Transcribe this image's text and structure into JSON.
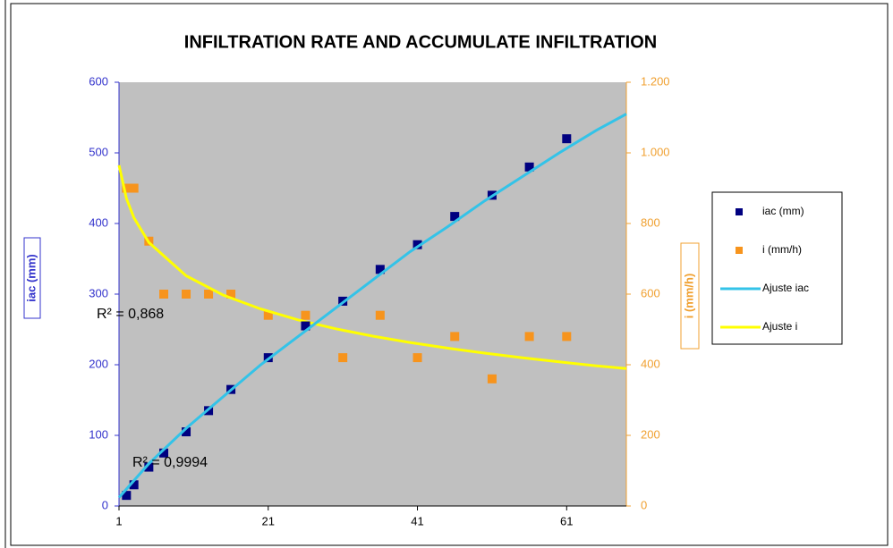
{
  "chart_data": {
    "type": "scatter",
    "title": "INFILTRATION RATE AND ACCUMULATE INFILTRATION",
    "y_label": "iac (mm)",
    "y2_label": "i (mm/h)",
    "annotations": [
      "R² = 0,868",
      "R² = 0,9994"
    ],
    "xlim": [
      1,
      69
    ],
    "xticks": [
      1,
      21,
      41,
      61
    ],
    "ylim": [
      0,
      600
    ],
    "yticks": [
      0,
      100,
      200,
      300,
      400,
      500,
      600
    ],
    "y2lim": [
      0,
      1200
    ],
    "y2ticks": [
      0,
      200,
      400,
      600,
      800,
      {
        "value": 1000,
        "label": "1.000"
      },
      {
        "value": 1200,
        "label": "1.200"
      }
    ],
    "plot_background": "#c0c0c0",
    "series": [
      {
        "name": "iac (mm)",
        "type": "scatter",
        "color": "#000080",
        "axis": "y",
        "x": [
          2,
          3,
          5,
          7,
          10,
          13,
          16,
          21,
          26,
          31,
          36,
          41,
          46,
          51,
          56,
          61
        ],
        "values": [
          15,
          30,
          55,
          75,
          105,
          135,
          165,
          210,
          255,
          290,
          335,
          370,
          410,
          440,
          480,
          520
        ]
      },
      {
        "name": "i (mm/h)",
        "type": "scatter",
        "color": "#f7941d",
        "axis": "y2",
        "x": [
          2,
          3,
          5,
          7,
          10,
          13,
          16,
          21,
          26,
          31,
          36,
          41,
          46,
          51,
          56,
          61
        ],
        "values": [
          900,
          900,
          750,
          600,
          600,
          600,
          600,
          540,
          540,
          420,
          540,
          420,
          480,
          360,
          480,
          480
        ]
      },
      {
        "name": "Ajuste iac",
        "type": "line",
        "color": "#33c3e8",
        "axis": "y",
        "x": [
          1,
          5,
          10,
          15,
          20,
          25,
          30,
          35,
          40,
          45,
          50,
          55,
          60,
          65,
          69
        ],
        "values": [
          12,
          60,
          110,
          155,
          200,
          240,
          280,
          320,
          360,
          395,
          432,
          466,
          500,
          532,
          555
        ]
      },
      {
        "name": "Ajuste i",
        "type": "line",
        "color": "#ffff00",
        "axis": "y2",
        "x": [
          1,
          2,
          3,
          5,
          10,
          15,
          20,
          25,
          30,
          35,
          40,
          45,
          50,
          55,
          60,
          65,
          69
        ],
        "values": [
          965,
          871,
          816,
          746,
          652,
          597,
          558,
          527,
          502,
          481,
          463,
          447,
          433,
          420,
          408,
          397,
          389
        ]
      }
    ]
  }
}
